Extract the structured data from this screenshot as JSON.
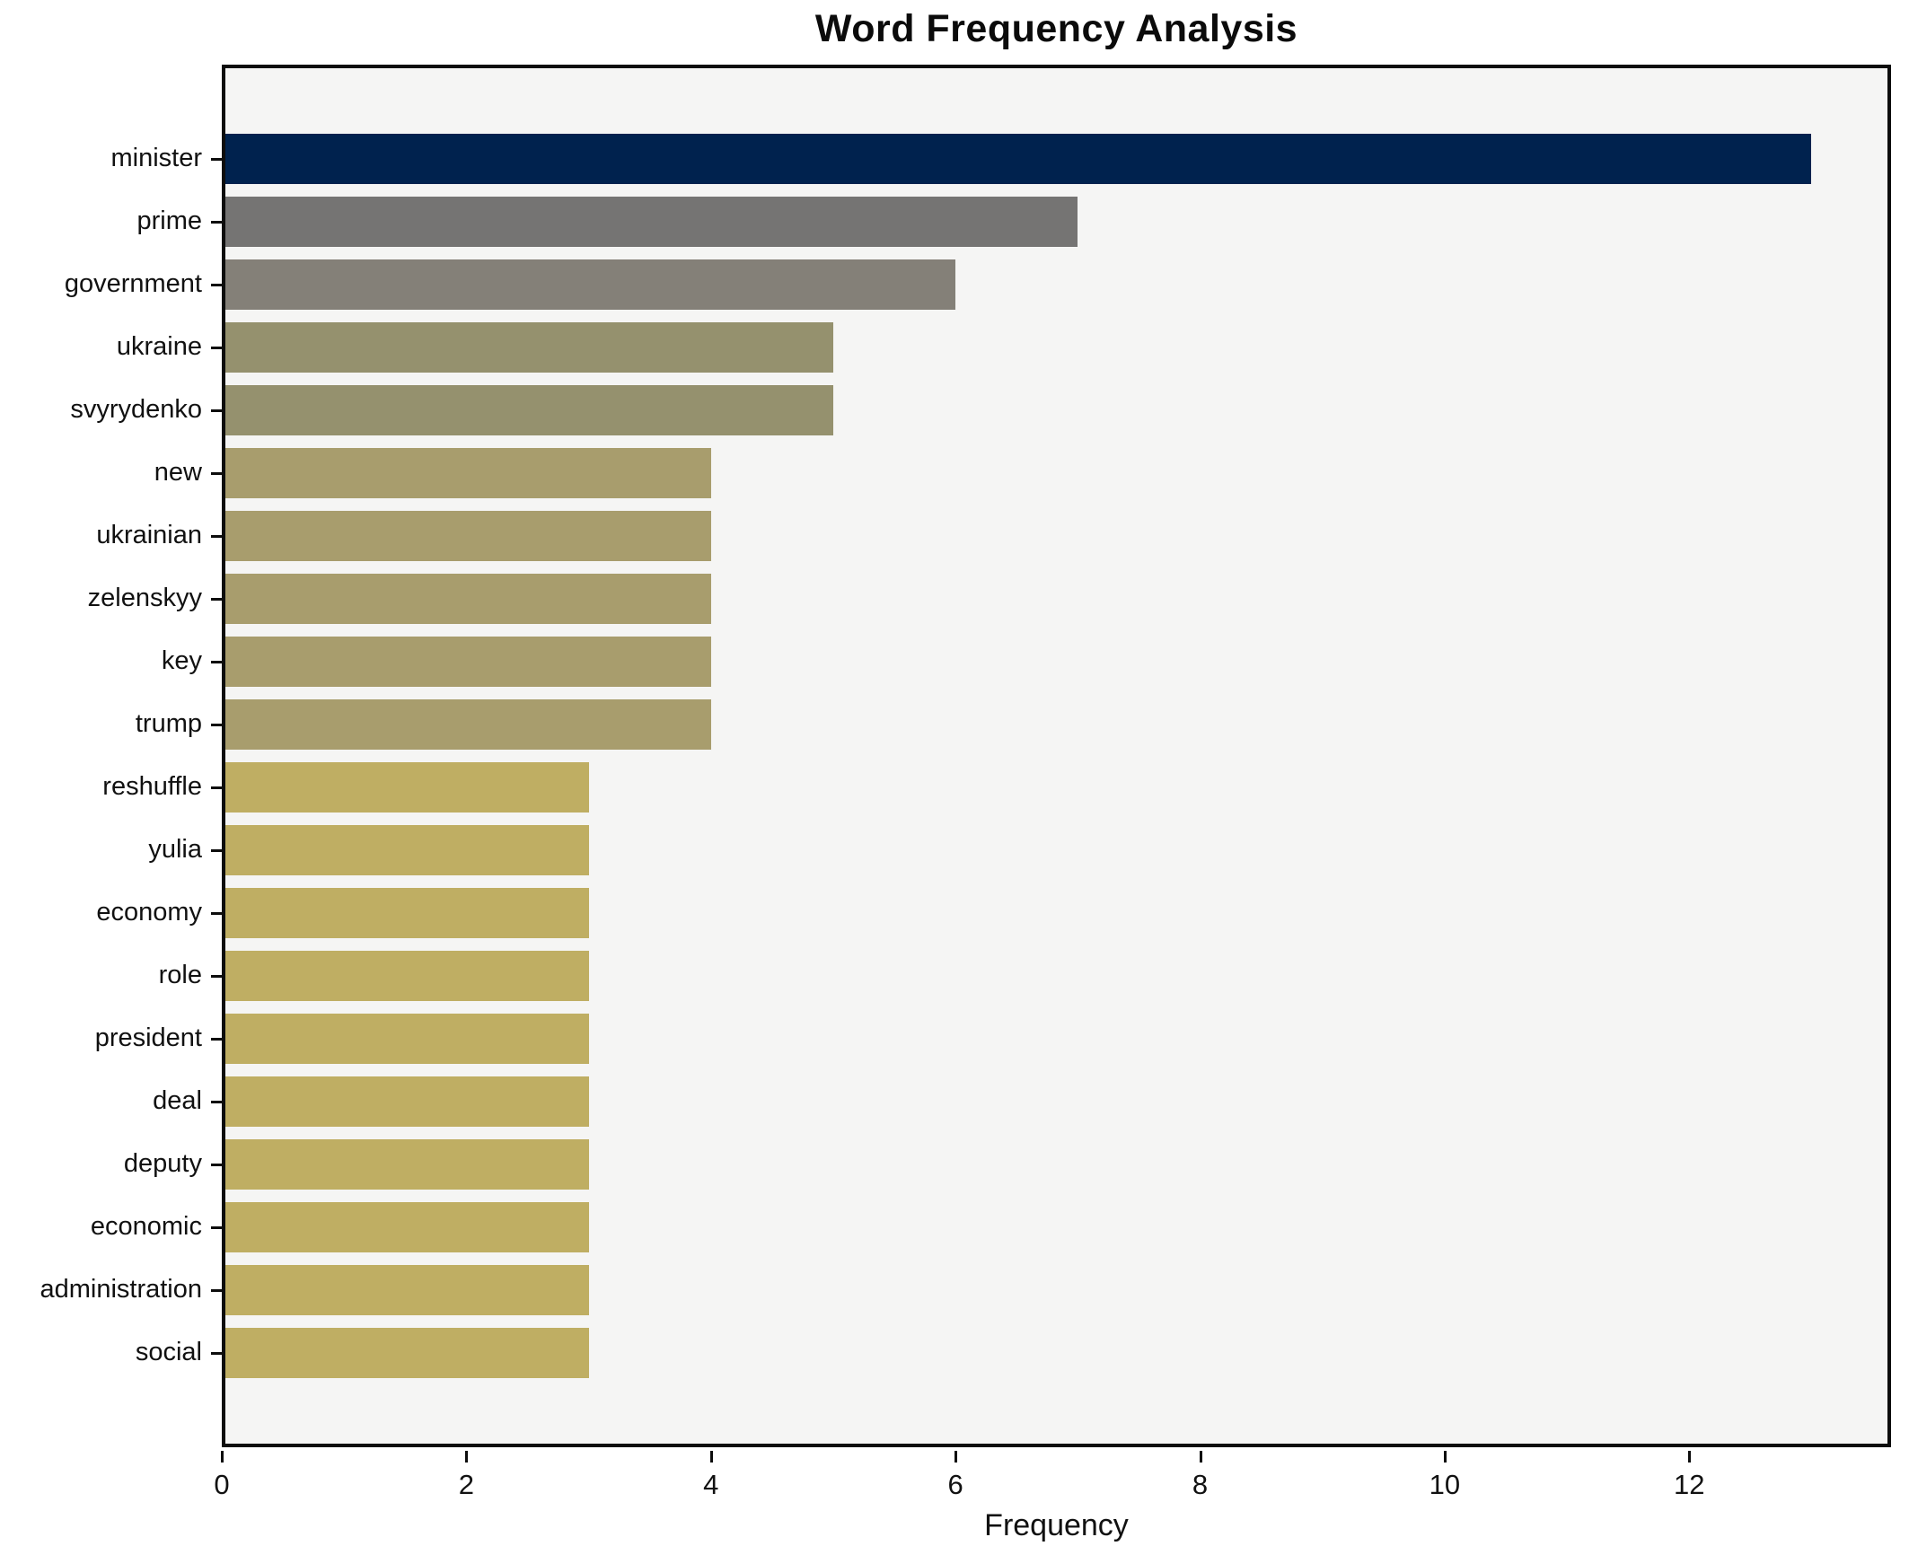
{
  "chart_data": {
    "type": "bar",
    "orientation": "horizontal",
    "title": "Word Frequency Analysis",
    "xlabel": "Frequency",
    "ylabel": "",
    "categories": [
      "minister",
      "prime",
      "government",
      "ukraine",
      "svyrydenko",
      "new",
      "ukrainian",
      "zelenskyy",
      "key",
      "trump",
      "reshuffle",
      "yulia",
      "economy",
      "role",
      "president",
      "deal",
      "deputy",
      "economic",
      "administration",
      "social"
    ],
    "values": [
      13,
      7,
      6,
      5,
      5,
      4,
      4,
      4,
      4,
      4,
      3,
      3,
      3,
      3,
      3,
      3,
      3,
      3,
      3,
      3
    ],
    "bar_colors": [
      "#00224e",
      "#757473",
      "#848078",
      "#95916e",
      "#95916e",
      "#a89d6d",
      "#a89d6d",
      "#a89d6d",
      "#a89d6d",
      "#a89d6d",
      "#bfae63",
      "#bfae63",
      "#bfae63",
      "#bfae63",
      "#bfae63",
      "#bfae63",
      "#bfae63",
      "#bfae63",
      "#bfae63",
      "#bfae63"
    ],
    "xlim": [
      0,
      13.65
    ],
    "xticks": [
      0,
      2,
      4,
      6,
      8,
      10,
      12
    ],
    "grid": false,
    "legend_position": "none",
    "plot_background": "#f5f5f4",
    "figure_background": "#ffffff",
    "spine_color": "#0d0d0d"
  }
}
